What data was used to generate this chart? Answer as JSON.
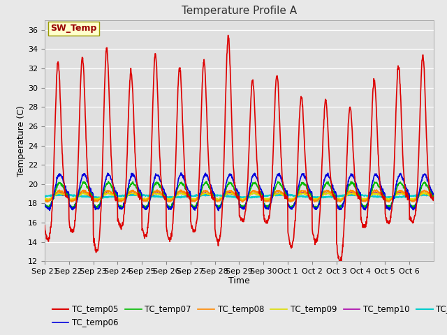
{
  "title": "Temperature Profile A",
  "xlabel": "Time",
  "ylabel": "Temperature (C)",
  "ylim": [
    12,
    37
  ],
  "yticks": [
    12,
    14,
    16,
    18,
    20,
    22,
    24,
    26,
    28,
    30,
    32,
    34,
    36
  ],
  "fig_bg_color": "#e8e8e8",
  "plot_bg_color": "#e0e0e0",
  "grid_color": "#ffffff",
  "sw_temp_label": "SW_Temp",
  "sw_temp_box_color": "#ffffcc",
  "sw_temp_text_color": "#990000",
  "series": {
    "TC_temp05": {
      "color": "#dd0000",
      "lw": 1.2
    },
    "TC_temp06": {
      "color": "#0000dd",
      "lw": 1.2
    },
    "TC_temp07": {
      "color": "#00bb00",
      "lw": 1.2
    },
    "TC_temp08": {
      "color": "#ff8800",
      "lw": 1.2
    },
    "TC_temp09": {
      "color": "#dddd00",
      "lw": 1.2
    },
    "TC_temp10": {
      "color": "#aa00aa",
      "lw": 1.2
    },
    "TC_temp11": {
      "color": "#00cccc",
      "lw": 1.5
    }
  },
  "peak_vals": [
    33,
    33.5,
    34.5,
    32,
    33.8,
    32.5,
    33,
    35.7,
    31,
    31.5,
    29.5,
    29,
    28.5,
    31,
    32.5,
    33.5
  ],
  "trough_vals": [
    14.2,
    15.0,
    13.0,
    15.5,
    14.5,
    14.2,
    15.0,
    14.0,
    16.2,
    16.0,
    13.5,
    14.0,
    12.0,
    15.5,
    16.0,
    16.0
  ],
  "tick_labels": [
    "Sep 21",
    "Sep 22",
    "Sep 23",
    "Sep 24",
    "Sep 25",
    "Sep 26",
    "Sep 27",
    "Sep 28",
    "Sep 29",
    "Sep 30",
    "Oct 1",
    "Oct 2",
    "Oct 3",
    "Oct 4",
    "Oct 5",
    "Oct 6"
  ],
  "n_days": 16
}
